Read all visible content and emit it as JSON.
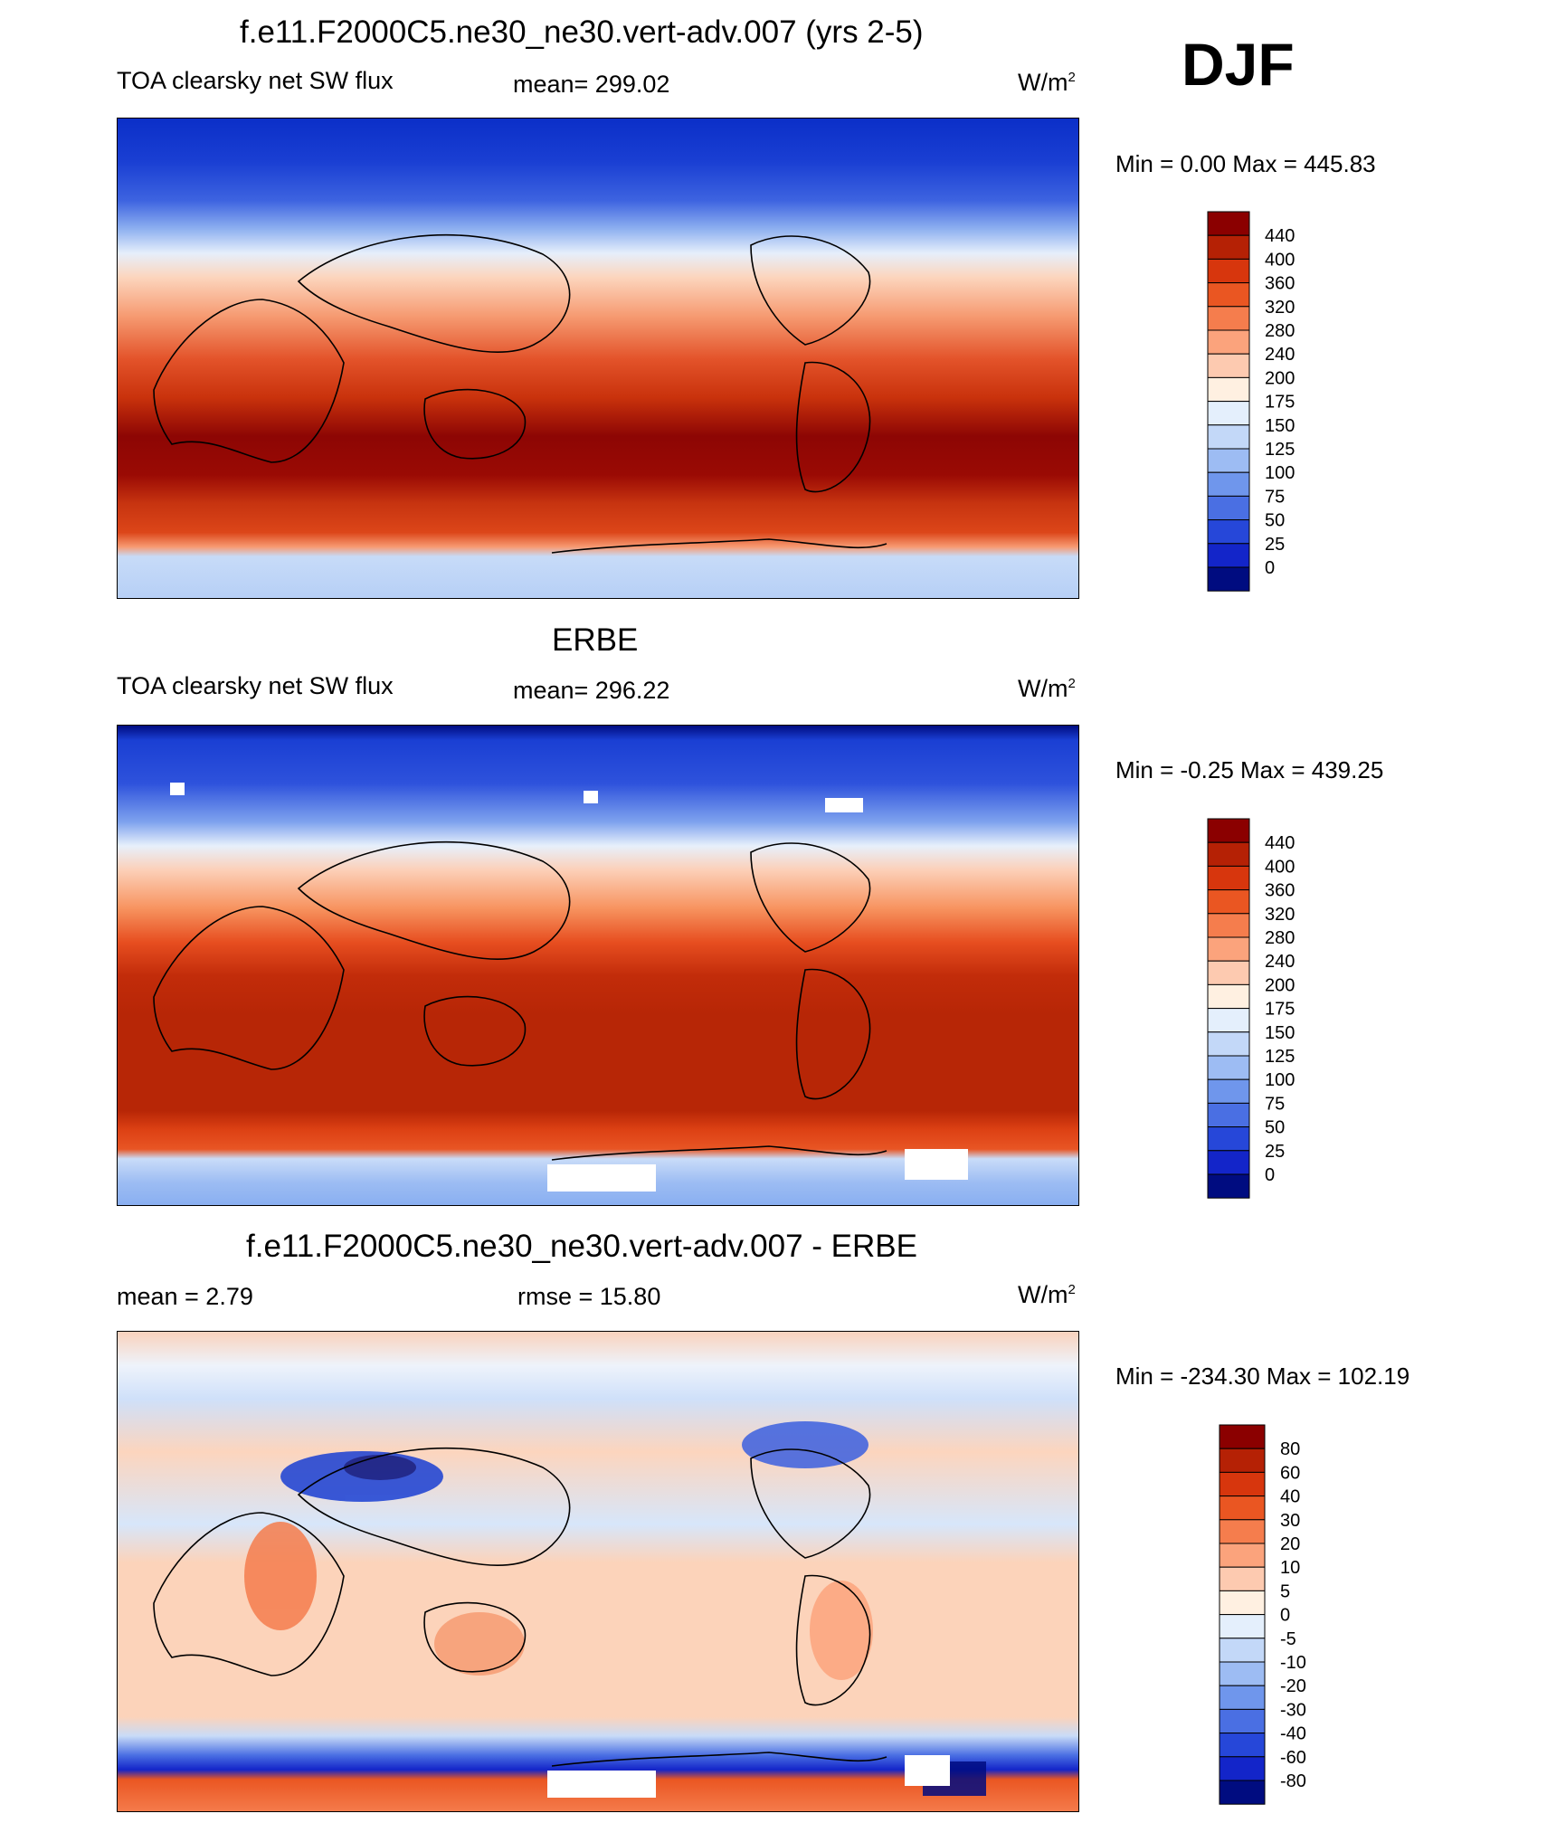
{
  "season": "DJF",
  "units_markup": "W/m",
  "units_sup": "2",
  "chart_data": [
    {
      "type": "heatmap",
      "title": "f.e11.F2000C5.ne30_ne30.vert-adv.007 (yrs 2-5)",
      "subtitle": "TOA clearsky net SW flux",
      "mean_label": "mean= 299.02",
      "min_max_label": "Min =   0.00 Max = 445.83",
      "stats": {
        "mean": 299.02,
        "min": 0.0,
        "max": 445.83
      },
      "units": "W/m2",
      "colorbar": {
        "levels": [
          "440",
          "400",
          "360",
          "320",
          "280",
          "240",
          "200",
          "175",
          "150",
          "125",
          "100",
          "75",
          "50",
          "25",
          "0"
        ],
        "colors": [
          "#8b0000",
          "#b52105",
          "#d7360d",
          "#ea5622",
          "#f57d4d",
          "#fba37c",
          "#fdcab0",
          "#fff0e1",
          "#e4effc",
          "#c3d8f8",
          "#9dbcf3",
          "#6f96ec",
          "#4a6fe3",
          "#2647d9",
          "#1325c9",
          "#000c80"
        ]
      }
    },
    {
      "type": "heatmap",
      "title": "ERBE",
      "subtitle": "TOA clearsky net SW flux",
      "mean_label": "mean= 296.22",
      "min_max_label": "Min =  -0.25 Max = 439.25",
      "stats": {
        "mean": 296.22,
        "min": -0.25,
        "max": 439.25
      },
      "units": "W/m2",
      "colorbar": {
        "levels": [
          "440",
          "400",
          "360",
          "320",
          "280",
          "240",
          "200",
          "175",
          "150",
          "125",
          "100",
          "75",
          "50",
          "25",
          "0"
        ],
        "colors": [
          "#8b0000",
          "#b52105",
          "#d7360d",
          "#ea5622",
          "#f57d4d",
          "#fba37c",
          "#fdcab0",
          "#fff0e1",
          "#e4effc",
          "#c3d8f8",
          "#9dbcf3",
          "#6f96ec",
          "#4a6fe3",
          "#2647d9",
          "#1325c9",
          "#000c80"
        ]
      }
    },
    {
      "type": "heatmap",
      "title": "f.e11.F2000C5.ne30_ne30.vert-adv.007 - ERBE",
      "mean_label": "mean =   2.79",
      "rmse_label": "rmse =  15.80",
      "min_max_label": "Min = -234.30 Max = 102.19",
      "stats": {
        "mean": 2.79,
        "rmse": 15.8,
        "min": -234.3,
        "max": 102.19
      },
      "units": "W/m2",
      "colorbar": {
        "levels": [
          "80",
          "60",
          "40",
          "30",
          "20",
          "10",
          "5",
          "0",
          "-5",
          "-10",
          "-20",
          "-30",
          "-40",
          "-60",
          "-80"
        ],
        "colors": [
          "#8b0000",
          "#b52105",
          "#d7360d",
          "#ea5622",
          "#f57d4d",
          "#fba37c",
          "#fdcab0",
          "#fff0e1",
          "#e4effc",
          "#c3d8f8",
          "#9dbcf3",
          "#6f96ec",
          "#4a6fe3",
          "#2647d9",
          "#1325c9",
          "#000c80"
        ]
      }
    }
  ]
}
